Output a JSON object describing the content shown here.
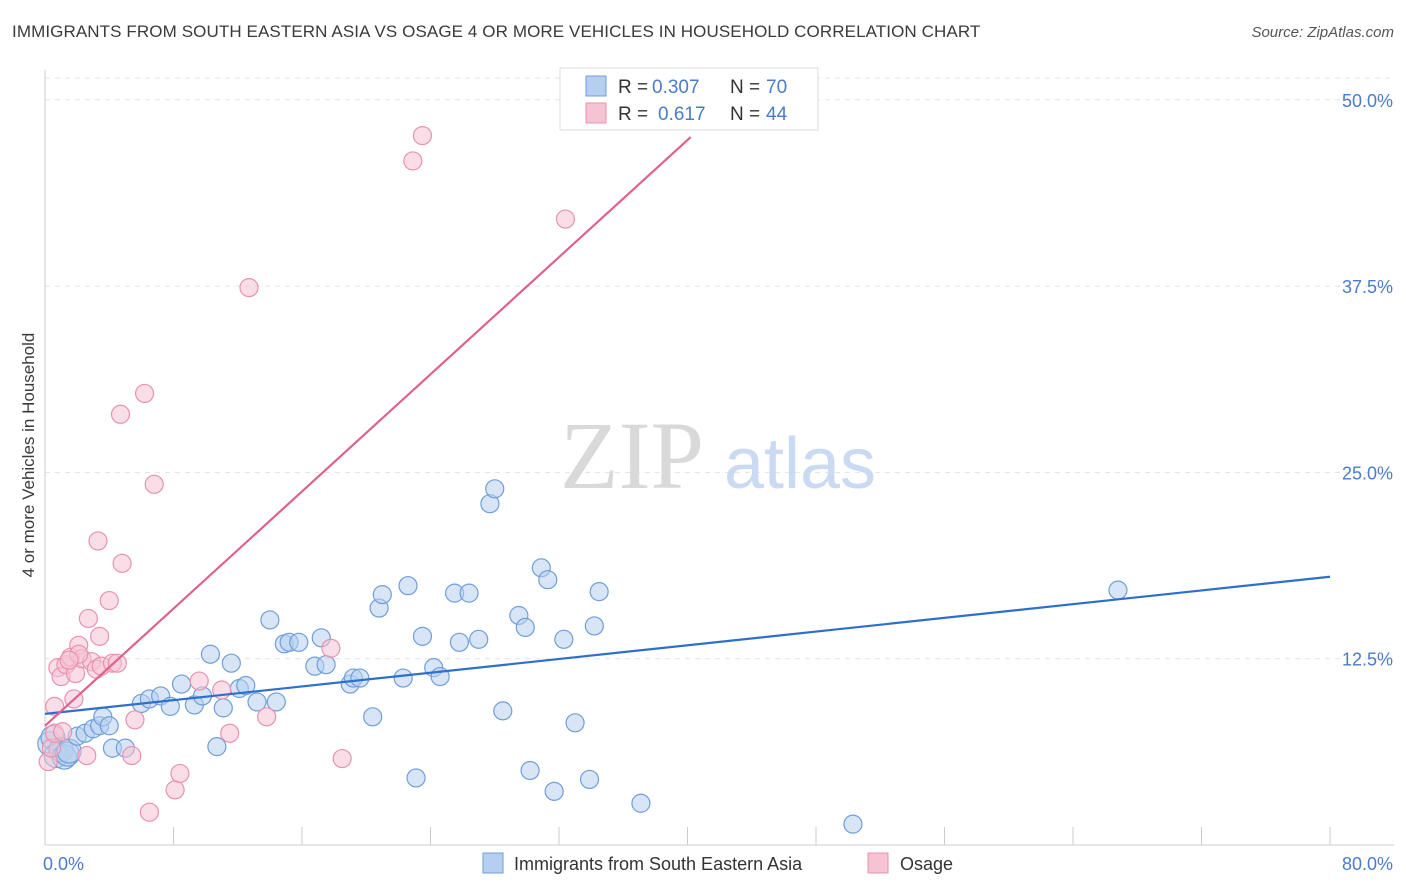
{
  "title": "IMMIGRANTS FROM SOUTH EASTERN ASIA VS OSAGE 4 OR MORE VEHICLES IN HOUSEHOLD CORRELATION CHART",
  "source": "Source: ZipAtlas.com",
  "watermark": {
    "zip": "ZIP",
    "atlas": "atlas"
  },
  "colors": {
    "blue_fill": "#b6cff1",
    "blue_stroke": "#6f9ed8",
    "blue_line": "#2e6fcc",
    "pink_fill": "#f6c3d3",
    "pink_stroke": "#e892ae",
    "pink_line": "#e0628c",
    "axis_text": "#4a7cc9",
    "grid": "#e2e2e2"
  },
  "legend_top": [
    {
      "r_label": "R =",
      "r_value": "0.307",
      "n_label": "N =",
      "n_value": "70"
    },
    {
      "r_label": "R =",
      "r_value": "0.617",
      "n_label": "N =",
      "n_value": "44"
    }
  ],
  "chart_data": {
    "type": "scatter",
    "title": "IMMIGRANTS FROM SOUTH EASTERN ASIA VS OSAGE 4 OR MORE VEHICLES IN HOUSEHOLD CORRELATION CHART",
    "xlabel": "",
    "ylabel": "4 or more Vehicles in Household",
    "xlim": [
      0,
      80
    ],
    "ylim": [
      0,
      52
    ],
    "x_tick_labels": [
      "0.0%",
      "80.0%"
    ],
    "y_ticks": [
      12.5,
      25.0,
      37.5,
      50.0
    ],
    "y_tick_labels": [
      "12.5%",
      "25.0%",
      "37.5%",
      "50.0%"
    ],
    "grid": true,
    "legend_position": "bottom",
    "series": [
      {
        "name": "Immigrants from South Eastern Asia",
        "color": "#6f9ed8",
        "r": 0.307,
        "n": 70,
        "trend": [
          [
            0,
            8.8
          ],
          [
            80,
            18.0
          ]
        ],
        "points": [
          [
            0.3,
            6.8
          ],
          [
            0.5,
            7.2
          ],
          [
            0.7,
            6.0
          ],
          [
            1.0,
            6.4
          ],
          [
            1.2,
            5.9
          ],
          [
            1.4,
            6.1
          ],
          [
            1.5,
            6.3
          ],
          [
            2.0,
            7.3
          ],
          [
            2.5,
            7.5
          ],
          [
            3.0,
            7.8
          ],
          [
            3.4,
            8.0
          ],
          [
            3.6,
            8.6
          ],
          [
            4.0,
            8.0
          ],
          [
            4.2,
            6.5
          ],
          [
            5.0,
            6.5
          ],
          [
            6.0,
            9.5
          ],
          [
            6.5,
            9.8
          ],
          [
            7.2,
            10.0
          ],
          [
            7.8,
            9.3
          ],
          [
            8.5,
            10.8
          ],
          [
            9.3,
            9.4
          ],
          [
            9.8,
            10.0
          ],
          [
            10.3,
            12.8
          ],
          [
            10.7,
            6.6
          ],
          [
            11.1,
            9.2
          ],
          [
            11.6,
            12.2
          ],
          [
            12.1,
            10.5
          ],
          [
            12.5,
            10.7
          ],
          [
            13.2,
            9.6
          ],
          [
            14.0,
            15.1
          ],
          [
            14.4,
            9.6
          ],
          [
            14.9,
            13.5
          ],
          [
            15.2,
            13.6
          ],
          [
            15.8,
            13.6
          ],
          [
            16.8,
            12.0
          ],
          [
            17.2,
            13.9
          ],
          [
            17.5,
            12.1
          ],
          [
            19.0,
            10.8
          ],
          [
            19.2,
            11.2
          ],
          [
            19.6,
            11.2
          ],
          [
            20.4,
            8.6
          ],
          [
            20.8,
            15.9
          ],
          [
            21.0,
            16.8
          ],
          [
            22.3,
            11.2
          ],
          [
            22.6,
            17.4
          ],
          [
            23.1,
            4.5
          ],
          [
            23.5,
            14.0
          ],
          [
            24.2,
            11.9
          ],
          [
            24.6,
            11.3
          ],
          [
            25.5,
            16.9
          ],
          [
            25.8,
            13.6
          ],
          [
            26.4,
            16.9
          ],
          [
            27.0,
            13.8
          ],
          [
            27.7,
            22.9
          ],
          [
            28.0,
            23.9
          ],
          [
            28.5,
            9.0
          ],
          [
            29.5,
            15.4
          ],
          [
            29.9,
            14.6
          ],
          [
            30.2,
            5.0
          ],
          [
            30.9,
            18.6
          ],
          [
            31.3,
            17.8
          ],
          [
            31.7,
            3.6
          ],
          [
            32.3,
            13.8
          ],
          [
            33.0,
            8.2
          ],
          [
            33.9,
            4.4
          ],
          [
            34.2,
            14.7
          ],
          [
            34.5,
            17.0
          ],
          [
            37.1,
            2.8
          ],
          [
            50.3,
            1.4
          ],
          [
            66.8,
            17.1
          ]
        ]
      },
      {
        "name": "Osage",
        "color": "#e892ae",
        "r": 0.617,
        "n": 44,
        "trend": [
          [
            0,
            8.0
          ],
          [
            40.2,
            47.5
          ]
        ],
        "points": [
          [
            0.2,
            5.6
          ],
          [
            0.4,
            6.5
          ],
          [
            0.6,
            7.5
          ],
          [
            0.6,
            9.3
          ],
          [
            0.8,
            11.9
          ],
          [
            1.0,
            11.3
          ],
          [
            1.1,
            7.6
          ],
          [
            1.3,
            12.1
          ],
          [
            1.6,
            12.6
          ],
          [
            1.8,
            9.8
          ],
          [
            1.9,
            11.5
          ],
          [
            2.1,
            13.4
          ],
          [
            2.3,
            12.5
          ],
          [
            2.6,
            6.0
          ],
          [
            2.7,
            15.2
          ],
          [
            2.9,
            12.3
          ],
          [
            3.2,
            11.8
          ],
          [
            3.4,
            14.0
          ],
          [
            3.5,
            12.0
          ],
          [
            4.0,
            16.4
          ],
          [
            4.2,
            12.2
          ],
          [
            4.5,
            12.2
          ],
          [
            4.7,
            28.9
          ],
          [
            4.8,
            18.9
          ],
          [
            5.4,
            6.0
          ],
          [
            5.6,
            8.4
          ],
          [
            6.2,
            30.3
          ],
          [
            6.5,
            2.2
          ],
          [
            6.8,
            24.2
          ],
          [
            8.1,
            3.7
          ],
          [
            8.4,
            4.8
          ],
          [
            9.6,
            11.0
          ],
          [
            11.0,
            10.4
          ],
          [
            11.5,
            7.5
          ],
          [
            12.7,
            37.4
          ],
          [
            13.8,
            8.6
          ],
          [
            17.8,
            13.2
          ],
          [
            18.5,
            5.8
          ],
          [
            22.9,
            45.9
          ],
          [
            23.5,
            47.6
          ],
          [
            32.4,
            42.0
          ],
          [
            3.3,
            20.4
          ],
          [
            2.1,
            12.8
          ],
          [
            1.5,
            12.4
          ]
        ]
      }
    ]
  }
}
